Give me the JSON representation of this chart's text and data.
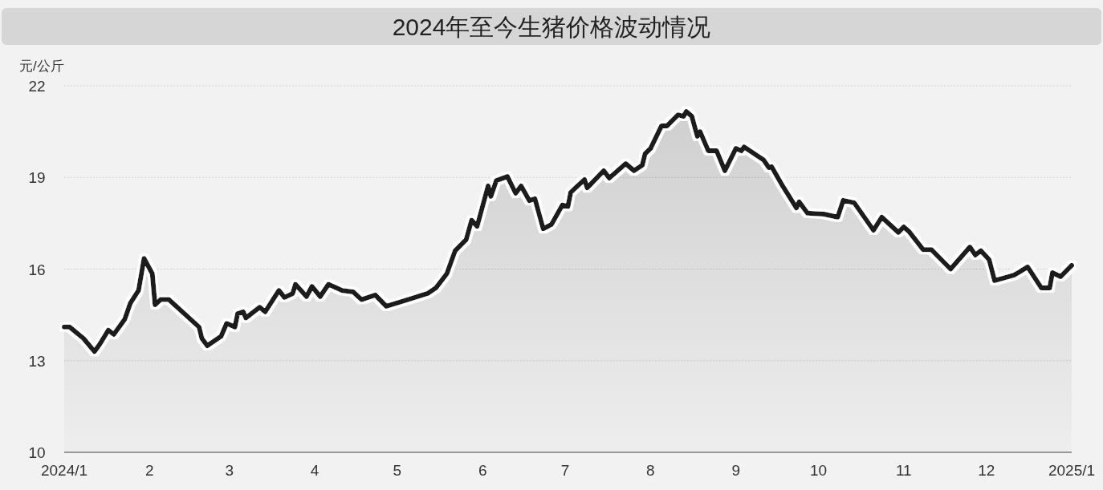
{
  "chart_data": {
    "type": "area",
    "title": "2024年至今生猪价格波动情况",
    "ylabel": "元/公斤",
    "xlim": [
      "2024-01-01",
      "2025-01-01"
    ],
    "xticks": [
      {
        "value": "2024-01-01",
        "label": "2024/1"
      },
      {
        "value": "2024-02-01",
        "label": "2"
      },
      {
        "value": "2024-03-01",
        "label": "3"
      },
      {
        "value": "2024-04-01",
        "label": "4"
      },
      {
        "value": "2024-05-01",
        "label": "5"
      },
      {
        "value": "2024-06-01",
        "label": "6"
      },
      {
        "value": "2024-07-01",
        "label": "7"
      },
      {
        "value": "2024-08-01",
        "label": "8"
      },
      {
        "value": "2024-09-01",
        "label": "9"
      },
      {
        "value": "2024-10-01",
        "label": "10"
      },
      {
        "value": "2024-11-01",
        "label": "11"
      },
      {
        "value": "2024-12-01",
        "label": "12"
      },
      {
        "value": "2025-01-01",
        "label": "2025/1"
      }
    ],
    "ylim": [
      10,
      22
    ],
    "yticks": [
      10,
      13,
      16,
      19,
      22
    ],
    "grid": "y",
    "line_style": "solid",
    "color": "#1a1a1a",
    "x": [
      "2024-01-01",
      "2024-01-03",
      "2024-01-08",
      "2024-01-12",
      "2024-01-14",
      "2024-01-17",
      "2024-01-19",
      "2024-01-23",
      "2024-01-25",
      "2024-01-28",
      "2024-01-30",
      "2024-02-02",
      "2024-02-03",
      "2024-02-05",
      "2024-02-08",
      "2024-02-19",
      "2024-02-20",
      "2024-02-22",
      "2024-02-27",
      "2024-02-29",
      "2024-03-03",
      "2024-03-04",
      "2024-03-06",
      "2024-03-07",
      "2024-03-12",
      "2024-03-14",
      "2024-03-19",
      "2024-03-21",
      "2024-03-24",
      "2024-03-25",
      "2024-03-29",
      "2024-03-31",
      "2024-04-03",
      "2024-04-06",
      "2024-04-11",
      "2024-04-15",
      "2024-04-18",
      "2024-04-23",
      "2024-04-27",
      "2024-05-12",
      "2024-05-15",
      "2024-05-19",
      "2024-05-22",
      "2024-05-26",
      "2024-05-28",
      "2024-05-30",
      "2024-06-03",
      "2024-06-04",
      "2024-06-06",
      "2024-06-10",
      "2024-06-13",
      "2024-06-15",
      "2024-06-18",
      "2024-06-20",
      "2024-06-23",
      "2024-06-26",
      "2024-06-30",
      "2024-07-02",
      "2024-07-03",
      "2024-07-08",
      "2024-07-09",
      "2024-07-15",
      "2024-07-17",
      "2024-07-23",
      "2024-07-26",
      "2024-07-29",
      "2024-07-30",
      "2024-08-01",
      "2024-08-05",
      "2024-08-07",
      "2024-08-11",
      "2024-08-13",
      "2024-08-14",
      "2024-08-16",
      "2024-08-18",
      "2024-08-19",
      "2024-08-22",
      "2024-08-25",
      "2024-08-28",
      "2024-09-01",
      "2024-09-03",
      "2024-09-04",
      "2024-09-10",
      "2024-09-11",
      "2024-09-13",
      "2024-09-14",
      "2024-09-18",
      "2024-09-23",
      "2024-09-24",
      "2024-09-27",
      "2024-10-03",
      "2024-10-08",
      "2024-10-10",
      "2024-10-14",
      "2024-10-21",
      "2024-10-24",
      "2024-10-30",
      "2024-11-01",
      "2024-11-03",
      "2024-11-08",
      "2024-11-11",
      "2024-11-18",
      "2024-11-25",
      "2024-11-27",
      "2024-11-29",
      "2024-12-02",
      "2024-12-04",
      "2024-12-11",
      "2024-12-12",
      "2024-12-16",
      "2024-12-21",
      "2024-12-24",
      "2024-12-25",
      "2024-12-28",
      "2025-01-01"
    ],
    "values": [
      14.1,
      14.1,
      13.73,
      13.3,
      13.55,
      14.0,
      13.86,
      14.36,
      14.88,
      15.3,
      16.35,
      15.85,
      14.83,
      15.0,
      15.0,
      14.1,
      13.73,
      13.49,
      13.8,
      14.22,
      14.1,
      14.54,
      14.6,
      14.4,
      14.75,
      14.6,
      15.3,
      15.07,
      15.2,
      15.5,
      15.1,
      15.43,
      15.1,
      15.5,
      15.3,
      15.25,
      15.0,
      15.15,
      14.78,
      15.2,
      15.38,
      15.85,
      16.6,
      16.96,
      17.6,
      17.4,
      18.72,
      18.38,
      18.9,
      19.03,
      18.48,
      18.72,
      18.24,
      18.3,
      17.32,
      17.46,
      18.1,
      18.05,
      18.51,
      18.93,
      18.66,
      19.22,
      18.98,
      19.45,
      19.22,
      19.4,
      19.77,
      19.95,
      20.69,
      20.69,
      21.05,
      21.0,
      21.16,
      21.0,
      20.35,
      20.5,
      19.87,
      19.87,
      19.22,
      19.95,
      19.87,
      20.0,
      19.64,
      19.58,
      19.32,
      19.35,
      18.72,
      18.0,
      18.2,
      17.83,
      17.8,
      17.7,
      18.25,
      18.17,
      17.27,
      17.7,
      17.2,
      17.38,
      17.22,
      16.64,
      16.64,
      16.0,
      16.72,
      16.46,
      16.6,
      16.31,
      15.62,
      15.8,
      15.85,
      16.07,
      15.38,
      15.38,
      15.88,
      15.75,
      16.12
    ]
  }
}
